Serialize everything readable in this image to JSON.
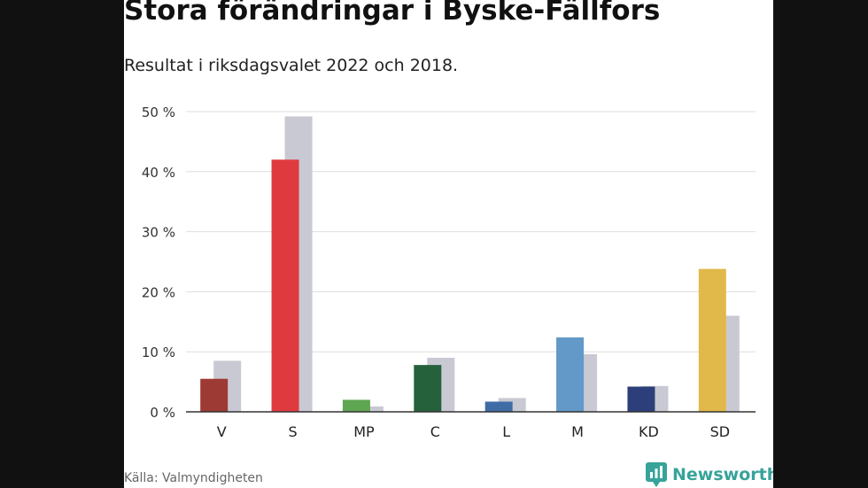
{
  "title": "Stora förändringar i Byske-Fällfors",
  "subtitle": "Resultat i riksdagsvalet 2022 och 2018.",
  "source": "Källa: Valmyndigheten",
  "brand": {
    "name": "Newsworthy",
    "icon": "newsworthy-logo-icon",
    "color": "#37a39a"
  },
  "chart_data": {
    "type": "bar",
    "categories": [
      "V",
      "S",
      "MP",
      "C",
      "L",
      "M",
      "KD",
      "SD"
    ],
    "series": [
      {
        "values": [
          5.5,
          42.0,
          2.0,
          7.8,
          1.7,
          12.4,
          4.2,
          23.8
        ],
        "colors": [
          "#9e3a34",
          "#df3b3f",
          "#5fa652",
          "#25613a",
          "#406ca6",
          "#6399c8",
          "#2d3f7a",
          "#e1b84a"
        ]
      },
      {
        "values": [
          8.5,
          49.2,
          0.9,
          9.0,
          2.3,
          9.6,
          4.3,
          16.0
        ],
        "color": "#c9c9d3"
      }
    ],
    "ylim": [
      0,
      50
    ],
    "yticks": [
      0,
      10,
      20,
      30,
      40,
      50
    ],
    "ytick_labels": [
      "0 %",
      "10 %",
      "20 %",
      "30 %",
      "40 %",
      "50 %"
    ],
    "grid": true,
    "legend": "none"
  }
}
